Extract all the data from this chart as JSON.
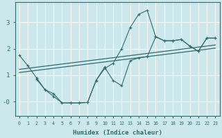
{
  "xlabel": "Humidex (Indice chaleur)",
  "bg_color": "#cde8ed",
  "grid_color": "#b0d8e0",
  "line_color": "#2e6b6b",
  "x_ticks": [
    0,
    1,
    2,
    3,
    4,
    5,
    6,
    7,
    8,
    9,
    10,
    11,
    12,
    13,
    14,
    15,
    16,
    17,
    18,
    19,
    20,
    21,
    22,
    23
  ],
  "y_ticks": [
    0,
    1,
    2,
    3
  ],
  "y_tick_labels": [
    "-0",
    "1",
    "2",
    "3"
  ],
  "ylim": [
    -0.55,
    3.75
  ],
  "xlim": [
    -0.5,
    23.5
  ],
  "line1_x": [
    0,
    1,
    2,
    3,
    4,
    5,
    6,
    7,
    8,
    9,
    10,
    11,
    12,
    13,
    14,
    15,
    16,
    17,
    18,
    19,
    20,
    21,
    22,
    23
  ],
  "line1_y": [
    1.75,
    1.35,
    0.9,
    0.45,
    0.2,
    -0.05,
    -0.05,
    -0.05,
    -0.03,
    0.8,
    1.25,
    1.45,
    2.0,
    2.8,
    3.3,
    3.45,
    2.45,
    2.3,
    2.3,
    2.35,
    2.1,
    1.9,
    2.4,
    2.4
  ],
  "line2_x": [
    0,
    1,
    2,
    3,
    4,
    5,
    6,
    7,
    8,
    9,
    10,
    11,
    12,
    13,
    14,
    15,
    16,
    17,
    18,
    19,
    20,
    21,
    22,
    23
  ],
  "line2_y": [
    1.1,
    1.14,
    1.18,
    1.22,
    1.26,
    1.3,
    1.34,
    1.38,
    1.42,
    1.46,
    1.5,
    1.54,
    1.58,
    1.62,
    1.66,
    1.7,
    1.74,
    1.78,
    1.82,
    1.86,
    1.9,
    1.94,
    1.98,
    2.02
  ],
  "line3_x": [
    0,
    1,
    2,
    3,
    4,
    5,
    6,
    7,
    8,
    9,
    10,
    11,
    12,
    13,
    14,
    15,
    16,
    17,
    18,
    19,
    20,
    21,
    22,
    23
  ],
  "line3_y": [
    1.22,
    1.26,
    1.3,
    1.34,
    1.38,
    1.42,
    1.46,
    1.5,
    1.54,
    1.58,
    1.62,
    1.66,
    1.7,
    1.74,
    1.78,
    1.82,
    1.86,
    1.9,
    1.94,
    1.98,
    2.02,
    2.06,
    2.1,
    2.14
  ],
  "line4_x": [
    2,
    3,
    4,
    5,
    6,
    7,
    8,
    9,
    10,
    11,
    12,
    13,
    14,
    15,
    16,
    17,
    18,
    19,
    20,
    21,
    22,
    23
  ],
  "line4_y": [
    0.85,
    0.45,
    0.3,
    -0.05,
    -0.05,
    -0.05,
    -0.03,
    0.8,
    1.3,
    0.8,
    0.6,
    1.55,
    1.65,
    1.7,
    2.45,
    2.3,
    2.3,
    2.35,
    2.1,
    1.9,
    2.4,
    2.4
  ]
}
